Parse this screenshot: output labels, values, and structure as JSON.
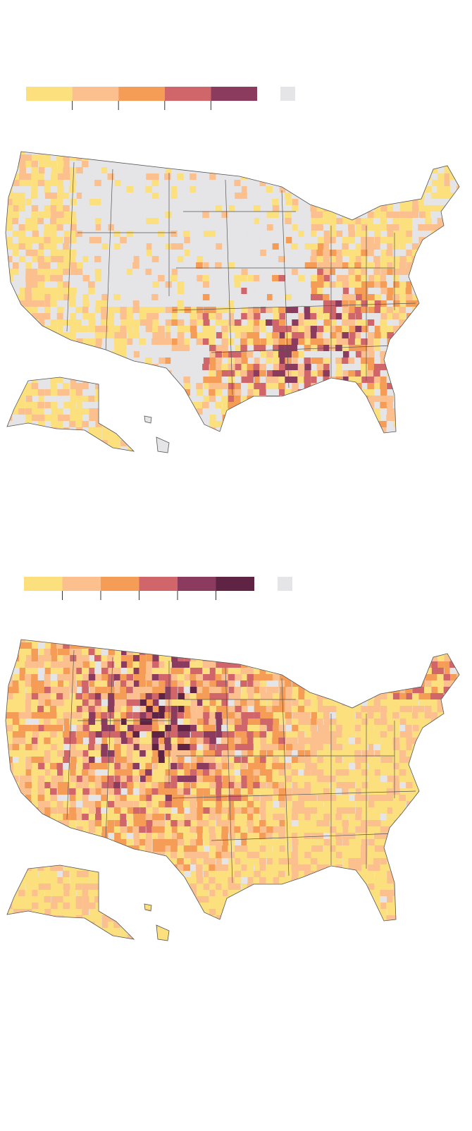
{
  "maps": [
    {
      "legend": {
        "colors": [
          "#fbe07d",
          "#fcc08e",
          "#f59c57",
          "#d0656a",
          "#8b3b5e"
        ],
        "no_data_color": "#e5e5e7"
      }
    },
    {
      "legend": {
        "colors": [
          "#fbe07d",
          "#fcc08e",
          "#f59c57",
          "#d0656a",
          "#8b3b5e",
          "#5f2343"
        ],
        "no_data_color": "#e5e5e7"
      }
    }
  ]
}
